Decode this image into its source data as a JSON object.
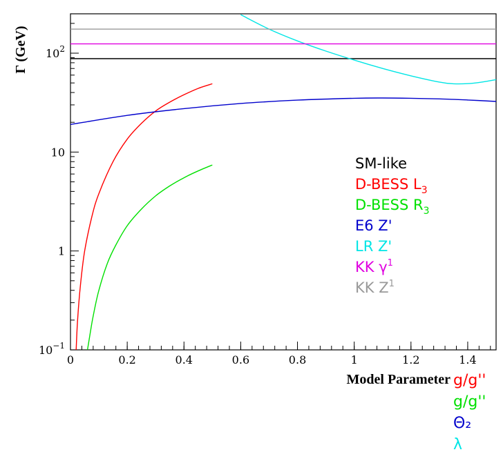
{
  "chart_data": {
    "type": "line",
    "ylabel": "Γ (GeV)",
    "xlabel": "Model Parameter",
    "xlim": [
      0,
      1.5
    ],
    "ylim": [
      0.1,
      250
    ],
    "yscale": "log",
    "x_ticks": [
      0,
      0.2,
      0.4,
      0.6,
      0.8,
      1,
      1.2,
      1.4
    ],
    "x_tick_labels": [
      "0",
      "0.2",
      "0.4",
      "0.6",
      "0.8",
      "1",
      "1.2",
      "1.4"
    ],
    "y_tick_labels": [
      {
        "value": 0.1,
        "base": "10",
        "exp": "−1"
      },
      {
        "value": 1,
        "base": "1",
        "exp": ""
      },
      {
        "value": 10,
        "base": "10",
        "exp": ""
      },
      {
        "value": 100,
        "base": "10",
        "exp": "2"
      }
    ],
    "legend_position": "right",
    "series": [
      {
        "name": "SM-like",
        "sub": "",
        "sup": "",
        "color": "#000000",
        "x": [
          0,
          1.5
        ],
        "y": [
          88,
          88
        ]
      },
      {
        "name": "D-BESS L",
        "sub": "3",
        "sup": "",
        "color": "#ff0000",
        "x": [
          0.02,
          0.025,
          0.035,
          0.05,
          0.075,
          0.1,
          0.15,
          0.2,
          0.25,
          0.3,
          0.35,
          0.4,
          0.45,
          0.5
        ],
        "y": [
          0.1,
          0.2,
          0.45,
          1.0,
          2.2,
          3.8,
          8.0,
          13.5,
          19.5,
          26.0,
          32.0,
          38.0,
          44.0,
          49.0
        ]
      },
      {
        "name": "D-BESS R",
        "sub": "3",
        "sup": "",
        "color": "#00e000",
        "x": [
          0.06,
          0.07,
          0.08,
          0.1,
          0.13,
          0.16,
          0.2,
          0.25,
          0.3,
          0.35,
          0.4,
          0.45,
          0.5
        ],
        "y": [
          0.1,
          0.15,
          0.22,
          0.4,
          0.75,
          1.15,
          1.8,
          2.65,
          3.6,
          4.55,
          5.5,
          6.45,
          7.4
        ]
      },
      {
        "name": "E6 Z'",
        "sub": "",
        "sup": "",
        "color": "#0000cc",
        "x": [
          0,
          0.2,
          0.4,
          0.6,
          0.8,
          1.0,
          1.1,
          1.2,
          1.3,
          1.4,
          1.5
        ],
        "y": [
          19,
          23.5,
          27.5,
          31,
          33.5,
          35,
          35.2,
          35.0,
          34.5,
          33.6,
          32.5
        ]
      },
      {
        "name": "LR Z'",
        "sub": "",
        "sup": "",
        "color": "#00e5e5",
        "x": [
          0.6,
          0.7,
          0.8,
          0.9,
          1.0,
          1.1,
          1.2,
          1.3,
          1.35,
          1.4,
          1.45,
          1.5
        ],
        "y": [
          245,
          175,
          133,
          105,
          85,
          70,
          59,
          51,
          49,
          49.2,
          51,
          54
        ]
      },
      {
        "name": "KK γ",
        "sub": "",
        "sup": "1",
        "color": "#e000e0",
        "x": [
          0,
          1.5
        ],
        "y": [
          124,
          124
        ]
      },
      {
        "name": "KK Z",
        "sub": "",
        "sup": "1",
        "color": "#999999",
        "x": [
          0,
          1.5
        ],
        "y": [
          175,
          175
        ]
      }
    ],
    "parameters": [
      {
        "label": "g/g''",
        "color": "#ff0000"
      },
      {
        "label": "g/g''",
        "color": "#00e000"
      },
      {
        "label": "Θ₂",
        "color": "#0000cc"
      },
      {
        "label": "λ",
        "color": "#00e5e5"
      }
    ]
  }
}
